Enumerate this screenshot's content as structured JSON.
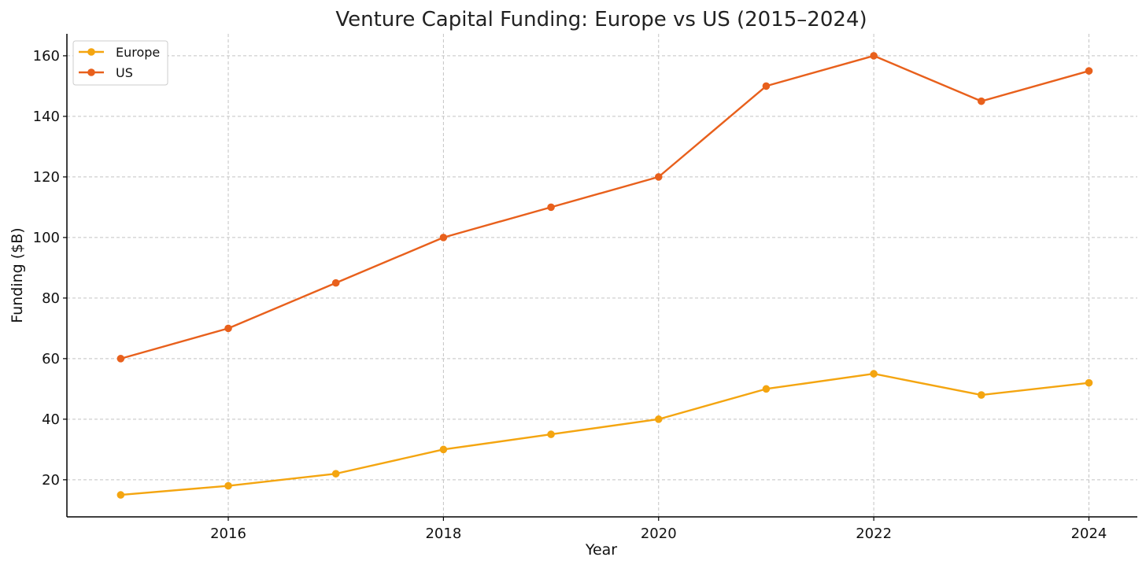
{
  "chart_data": {
    "type": "line",
    "title": "Venture Capital Funding: Europe vs US (2015–2024)",
    "xlabel": "Year",
    "ylabel": "Funding ($B)",
    "x": [
      2015,
      2016,
      2017,
      2018,
      2019,
      2020,
      2021,
      2022,
      2023,
      2024
    ],
    "xlim": [
      2014.5,
      2024.45
    ],
    "ylim": [
      7.75,
      167.25
    ],
    "xticks": [
      2016,
      2018,
      2020,
      2022,
      2024
    ],
    "yticks": [
      20,
      40,
      60,
      80,
      100,
      120,
      140,
      160
    ],
    "grid": true,
    "legend_position": "top-left",
    "series": [
      {
        "name": "Europe",
        "color": "#F4A510",
        "values": [
          15,
          18,
          22,
          30,
          35,
          40,
          50,
          55,
          48,
          52
        ]
      },
      {
        "name": "US",
        "color": "#E8601C",
        "values": [
          60,
          70,
          85,
          100,
          110,
          120,
          150,
          160,
          145,
          155
        ]
      }
    ]
  }
}
